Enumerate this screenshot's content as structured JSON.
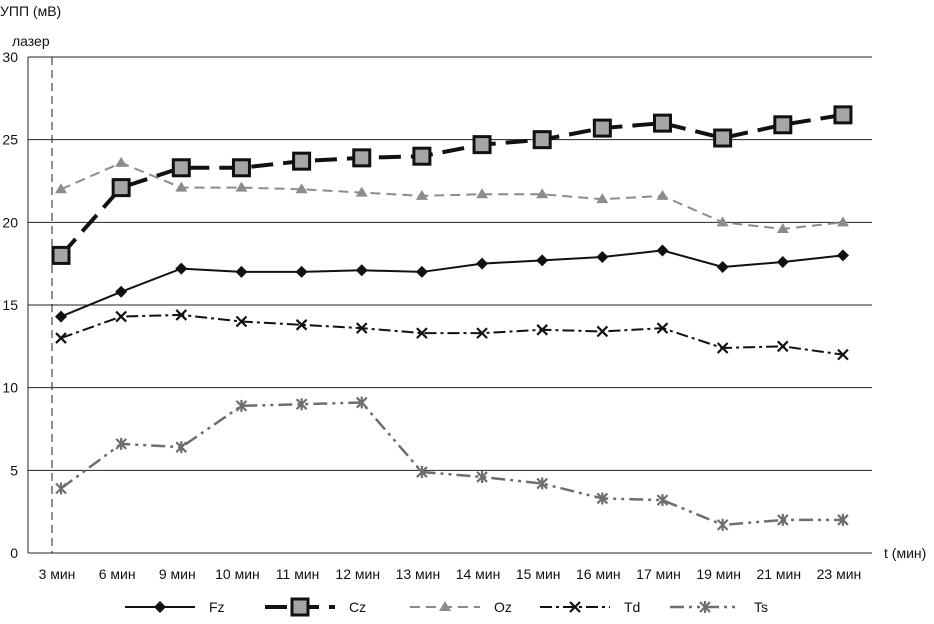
{
  "chart_data": {
    "type": "line",
    "ylabel": "УПП (мВ)",
    "xlabel": "t (мин)",
    "annotation": "лазер",
    "ylim": [
      0,
      30
    ],
    "yticks": [
      0,
      5,
      10,
      15,
      20,
      25,
      30
    ],
    "grid": true,
    "legend_position": "bottom",
    "categories": [
      "3 мин",
      "6 мин",
      "9 мин",
      "10 мин",
      "11 мин",
      "12 мин",
      "13 мин",
      "14 мин",
      "15 мин",
      "16 мин",
      "17 мин",
      "19 мин",
      "21 мин",
      "23 мин"
    ],
    "series": [
      {
        "name": "Fz",
        "color": "#111111",
        "values": [
          14.3,
          15.8,
          17.2,
          17.0,
          17.0,
          17.1,
          17.0,
          17.5,
          17.7,
          17.9,
          18.3,
          17.3,
          17.6,
          18.0
        ]
      },
      {
        "name": "Cz",
        "color": "#111111",
        "values": [
          18.0,
          22.1,
          23.3,
          23.3,
          23.7,
          23.9,
          24.0,
          24.7,
          25.0,
          25.7,
          26.0,
          25.1,
          25.9,
          26.5
        ]
      },
      {
        "name": "Oz",
        "color": "#8c8c8c",
        "values": [
          22.0,
          23.6,
          22.1,
          22.1,
          22.0,
          21.8,
          21.6,
          21.7,
          21.7,
          21.4,
          21.6,
          20.0,
          19.6,
          20.0
        ]
      },
      {
        "name": "Td",
        "color": "#111111",
        "values": [
          13.0,
          14.3,
          14.4,
          14.0,
          13.8,
          13.6,
          13.3,
          13.3,
          13.5,
          13.4,
          13.6,
          12.4,
          12.5,
          12.0
        ]
      },
      {
        "name": "Ts",
        "color": "#6e6e6e",
        "values": [
          3.9,
          6.6,
          6.4,
          8.9,
          9.0,
          9.1,
          4.9,
          4.6,
          4.2,
          3.3,
          3.2,
          1.7,
          2.0,
          2.0
        ]
      }
    ]
  }
}
